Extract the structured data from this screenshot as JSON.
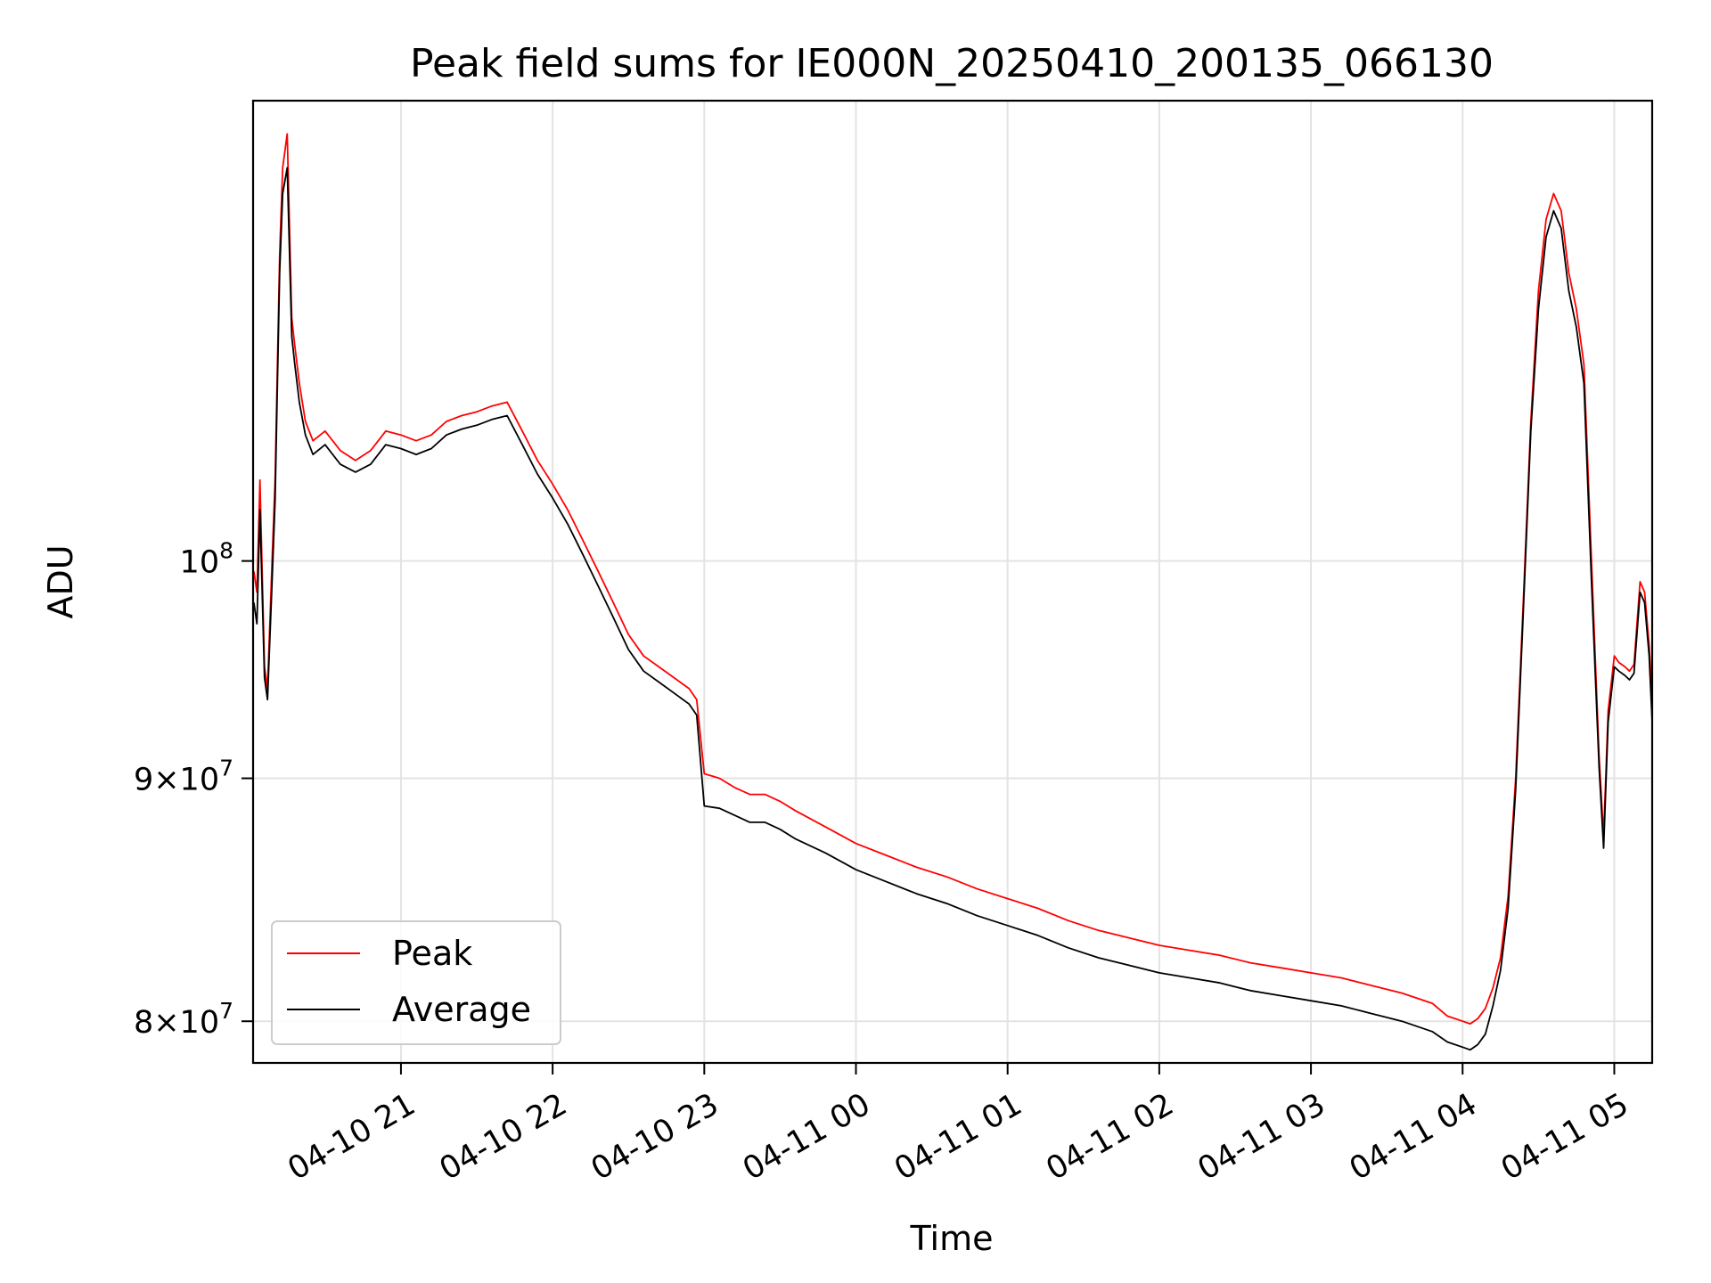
{
  "chart_data": {
    "type": "line",
    "title": "Peak field sums for IE000N_20250410_200135_066130",
    "xlabel": "Time",
    "ylabel": "ADU",
    "x_ticks": [
      "04-10 21",
      "04-10 22",
      "04-10 23",
      "04-11 00",
      "04-11 01",
      "04-11 02",
      "04-11 03",
      "04-11 04",
      "04-11 05"
    ],
    "x_tick_hours": [
      21,
      22,
      23,
      24,
      25,
      26,
      27,
      28,
      29
    ],
    "y_ticks": [
      {
        "value": 80000000,
        "mantissa": "8",
        "base": "10",
        "exp": "7"
      },
      {
        "value": 90000000,
        "mantissa": "9",
        "base": "10",
        "exp": "7"
      },
      {
        "value": 100000000,
        "mantissa": "",
        "base": "10",
        "exp": "8"
      }
    ],
    "xlim": [
      20.025,
      29.25
    ],
    "ylim": [
      78400000,
      125000000
    ],
    "y_scale": "log",
    "grid": true,
    "legend_position": "lower-left",
    "series": [
      {
        "name": "Peak",
        "color": "#ff0000",
        "x": [
          20.03,
          20.05,
          20.07,
          20.1,
          20.12,
          20.15,
          20.17,
          20.2,
          20.22,
          20.25,
          20.28,
          20.3,
          20.33,
          20.37,
          20.42,
          20.5,
          20.6,
          20.7,
          20.8,
          20.9,
          21.0,
          21.1,
          21.2,
          21.3,
          21.4,
          21.5,
          21.6,
          21.7,
          21.8,
          21.9,
          22.0,
          22.1,
          22.2,
          22.3,
          22.4,
          22.5,
          22.6,
          22.7,
          22.8,
          22.9,
          22.95,
          23.0,
          23.1,
          23.2,
          23.3,
          23.4,
          23.5,
          23.6,
          23.8,
          24.0,
          24.2,
          24.4,
          24.6,
          24.8,
          25.0,
          25.2,
          25.4,
          25.6,
          25.8,
          26.0,
          26.2,
          26.4,
          26.6,
          26.8,
          27.0,
          27.2,
          27.4,
          27.6,
          27.8,
          27.9,
          28.0,
          28.05,
          28.1,
          28.15,
          28.2,
          28.25,
          28.3,
          28.35,
          28.4,
          28.45,
          28.5,
          28.55,
          28.6,
          28.65,
          28.7,
          28.75,
          28.8,
          28.85,
          28.9,
          28.93,
          28.96,
          29.0,
          29.03,
          29.07,
          29.1,
          29.13,
          29.17,
          29.2,
          29.23,
          29.25
        ],
        "values": [
          99500000,
          98500000,
          104000000,
          95000000,
          94000000,
          100000000,
          104000000,
          116000000,
          121000000,
          123000000,
          112500000,
          111000000,
          109000000,
          107000000,
          106000000,
          106500000,
          105500000,
          105000000,
          105500000,
          106500000,
          106300000,
          106000000,
          106300000,
          107000000,
          107300000,
          107500000,
          107800000,
          108000000,
          106500000,
          105000000,
          103800000,
          102500000,
          101000000,
          99500000,
          98000000,
          96500000,
          95500000,
          95000000,
          94500000,
          94000000,
          93500000,
          90200000,
          90000000,
          89600000,
          89300000,
          89300000,
          89000000,
          88600000,
          87900000,
          87200000,
          86700000,
          86200000,
          85800000,
          85300000,
          84900000,
          84500000,
          84000000,
          83600000,
          83300000,
          83000000,
          82800000,
          82600000,
          82300000,
          82100000,
          81900000,
          81700000,
          81400000,
          81100000,
          80700000,
          80200000,
          80000000,
          79900000,
          80100000,
          80500000,
          81300000,
          82500000,
          85000000,
          90000000,
          98000000,
          107000000,
          114000000,
          118000000,
          119500000,
          118500000,
          115000000,
          113000000,
          110000000,
          100000000,
          91000000,
          87500000,
          93000000,
          95500000,
          95200000,
          95000000,
          94800000,
          95100000,
          99000000,
          98500000,
          96000000,
          93500000
        ]
      },
      {
        "name": "Average",
        "color": "#000000",
        "x": [
          20.03,
          20.05,
          20.07,
          20.1,
          20.12,
          20.15,
          20.17,
          20.2,
          20.22,
          20.25,
          20.28,
          20.3,
          20.33,
          20.37,
          20.42,
          20.5,
          20.6,
          20.7,
          20.8,
          20.9,
          21.0,
          21.1,
          21.2,
          21.3,
          21.4,
          21.5,
          21.6,
          21.7,
          21.8,
          21.9,
          22.0,
          22.1,
          22.2,
          22.3,
          22.4,
          22.5,
          22.6,
          22.7,
          22.8,
          22.9,
          22.95,
          23.0,
          23.1,
          23.2,
          23.3,
          23.4,
          23.5,
          23.6,
          23.8,
          24.0,
          24.2,
          24.4,
          24.6,
          24.8,
          25.0,
          25.2,
          25.4,
          25.6,
          25.8,
          26.0,
          26.2,
          26.4,
          26.6,
          26.8,
          27.0,
          27.2,
          27.4,
          27.6,
          27.8,
          27.9,
          28.0,
          28.05,
          28.1,
          28.15,
          28.2,
          28.25,
          28.3,
          28.35,
          28.4,
          28.45,
          28.5,
          28.55,
          28.6,
          28.65,
          28.7,
          28.75,
          28.8,
          28.85,
          28.9,
          28.93,
          28.96,
          29.0,
          29.03,
          29.07,
          29.1,
          29.13,
          29.17,
          29.2,
          29.23,
          29.25
        ],
        "values": [
          98000000,
          97000000,
          102500000,
          94500000,
          93500000,
          99000000,
          103000000,
          115000000,
          119500000,
          121000000,
          111500000,
          110000000,
          108000000,
          106300000,
          105300000,
          105800000,
          104800000,
          104400000,
          104800000,
          105800000,
          105600000,
          105300000,
          105600000,
          106300000,
          106600000,
          106800000,
          107100000,
          107300000,
          105800000,
          104300000,
          103100000,
          101800000,
          100300000,
          98800000,
          97300000,
          95800000,
          94800000,
          94300000,
          93800000,
          93300000,
          92800000,
          88800000,
          88700000,
          88400000,
          88100000,
          88100000,
          87800000,
          87400000,
          86800000,
          86100000,
          85600000,
          85100000,
          84700000,
          84200000,
          83800000,
          83400000,
          82900000,
          82500000,
          82200000,
          81900000,
          81700000,
          81500000,
          81200000,
          81000000,
          80800000,
          80600000,
          80300000,
          80000000,
          79600000,
          79200000,
          79000000,
          78900000,
          79100000,
          79500000,
          80600000,
          82000000,
          84500000,
          89500000,
          97500000,
          106500000,
          113000000,
          117000000,
          118500000,
          117500000,
          114000000,
          112000000,
          109000000,
          99000000,
          90500000,
          87000000,
          92500000,
          95000000,
          94800000,
          94600000,
          94400000,
          94700000,
          98500000,
          98000000,
          95500000,
          92500000
        ]
      }
    ]
  }
}
